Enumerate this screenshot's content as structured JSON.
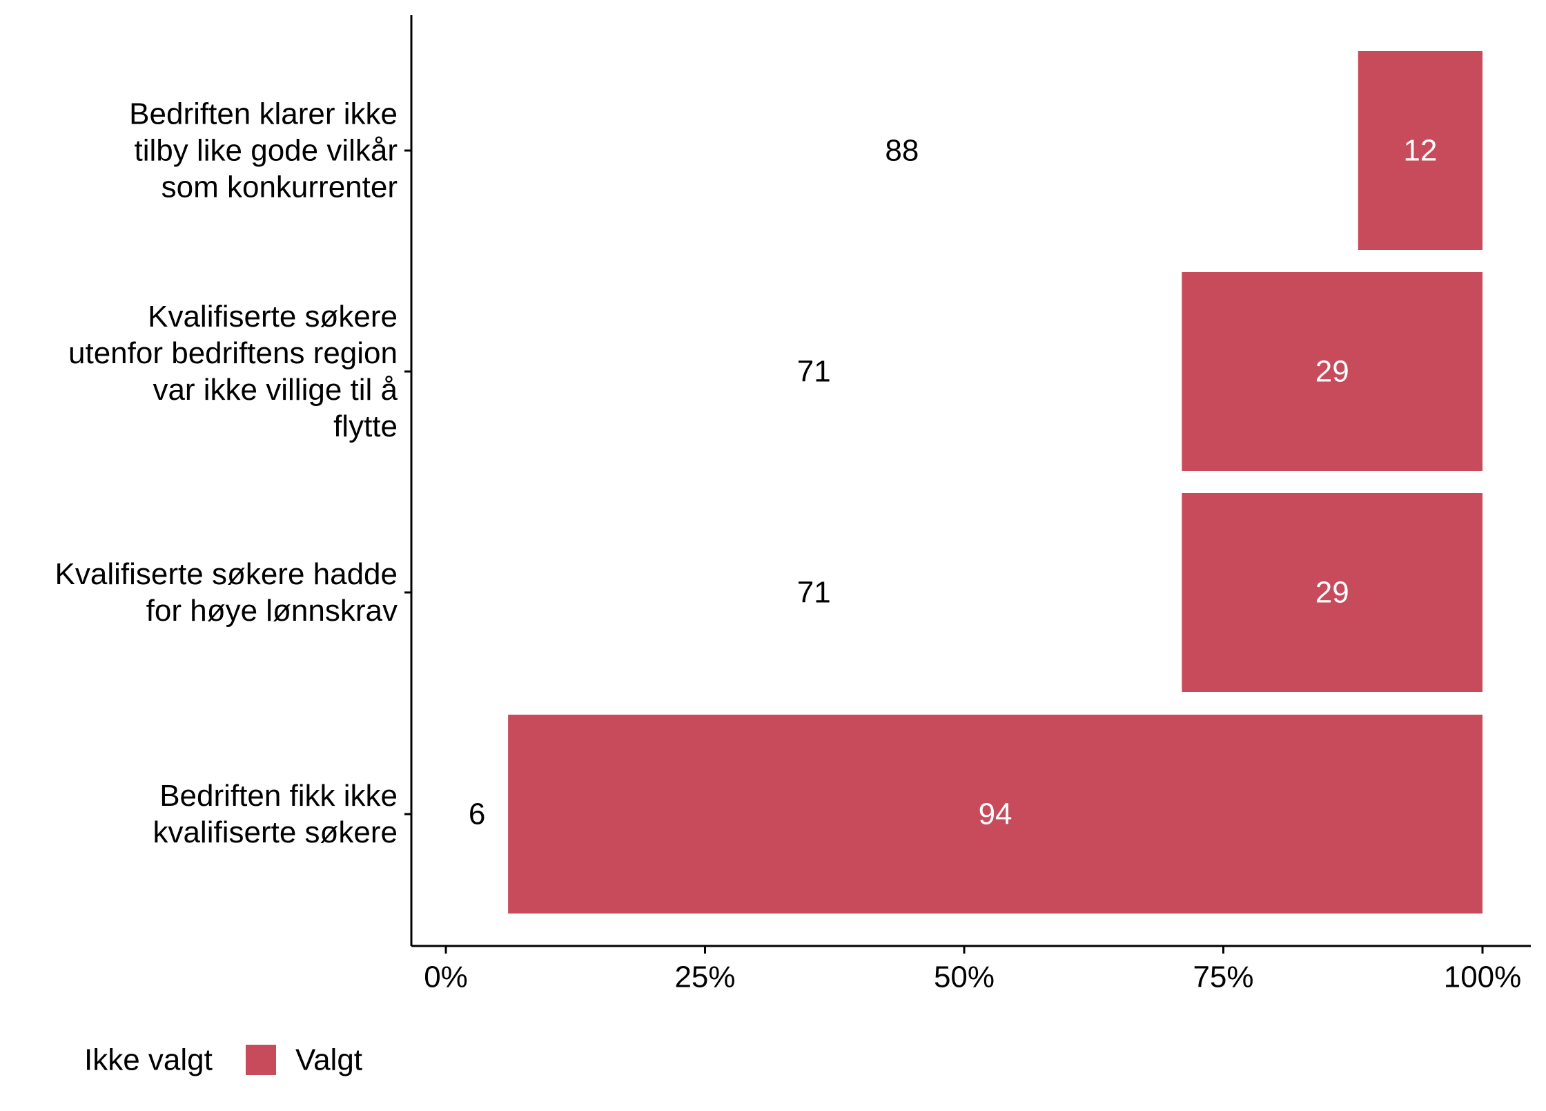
{
  "chart_data": {
    "type": "bar",
    "orientation": "horizontal",
    "stacked": true,
    "categories": [
      [
        "Bedriften klarer ikke",
        "tilby like gode vilkår",
        "som konkurrenter"
      ],
      [
        "Kvalifiserte søkere",
        "utenfor bedriftens region",
        "var ikke villige til å",
        "flytte"
      ],
      [
        "Kvalifiserte søkere hadde",
        "for høye lønnskrav"
      ],
      [
        "Bedriften fikk ikke",
        "kvalifiserte søkere"
      ]
    ],
    "series": [
      {
        "name": "Ikke valgt",
        "values": [
          88,
          71,
          71,
          6
        ],
        "color": "#ffffff",
        "label_color": "#000000"
      },
      {
        "name": "Valgt",
        "values": [
          12,
          29,
          29,
          94
        ],
        "color": "#c84b5b",
        "label_color": "#ffffff"
      }
    ],
    "xlim": [
      0,
      100
    ],
    "x_ticks": [
      0,
      25,
      50,
      75,
      100
    ],
    "x_tick_labels": [
      "0%",
      "25%",
      "50%",
      "75%",
      "100%"
    ],
    "title": "",
    "xlabel": "",
    "ylabel": "",
    "grid": false,
    "legend": {
      "position": "bottom-left",
      "entries": [
        "Ikke valgt",
        "Valgt"
      ]
    }
  }
}
